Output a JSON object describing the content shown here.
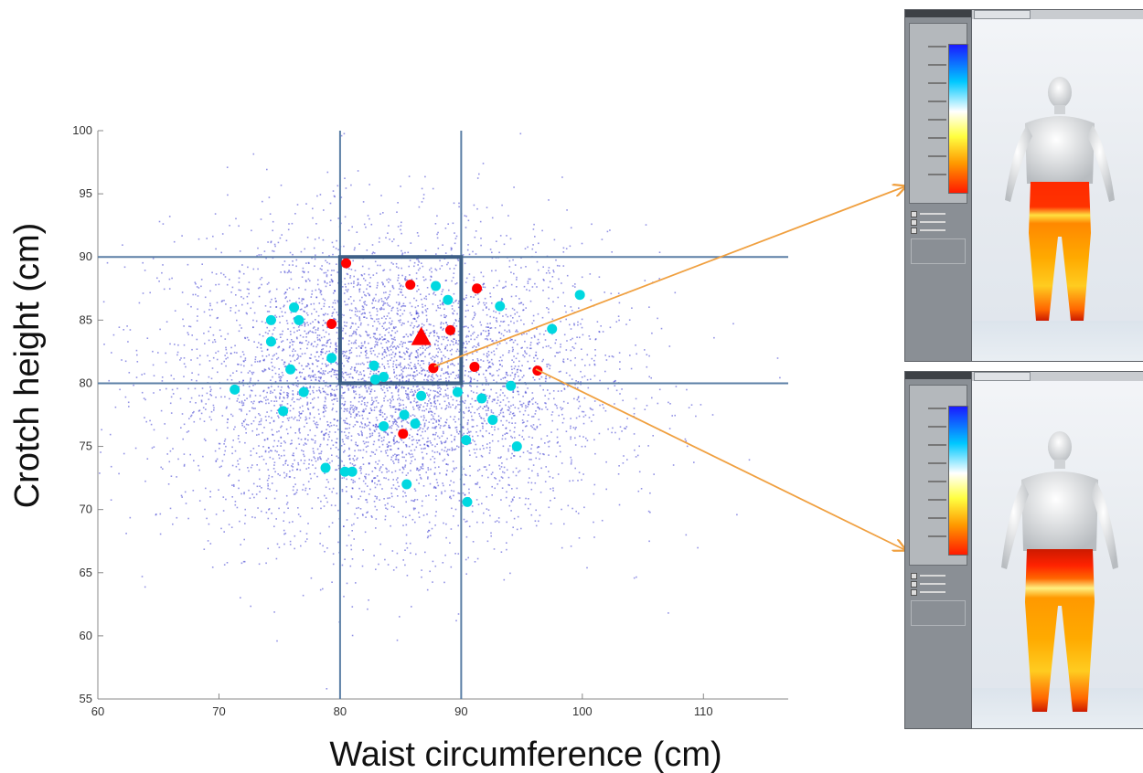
{
  "chart_data": {
    "type": "scatter",
    "xlabel": "Waist circumference (cm)",
    "ylabel": "Crotch height (cm)",
    "xlim": [
      60,
      117
    ],
    "ylim": [
      55,
      100
    ],
    "x_ticks": [
      60,
      70,
      80,
      90,
      100,
      110
    ],
    "y_ticks": [
      55,
      60,
      65,
      70,
      75,
      80,
      85,
      90,
      95,
      100
    ],
    "reference_lines": {
      "x": [
        80,
        90
      ],
      "y": [
        80,
        90
      ]
    },
    "highlight_box": {
      "x": [
        80,
        90
      ],
      "y": [
        80,
        90
      ]
    },
    "population_cloud": {
      "color": "#3a3ad0",
      "center": [
        84,
        80
      ],
      "spread": [
        9,
        6
      ]
    },
    "series": [
      {
        "color": "#ff0000",
        "points": [
          [
            80.5,
            89.5
          ],
          [
            85.8,
            87.8
          ],
          [
            91.3,
            87.5
          ],
          [
            79.3,
            84.7
          ],
          [
            89.1,
            84.2
          ],
          [
            87.7,
            81.2
          ],
          [
            91.1,
            81.3
          ],
          [
            96.3,
            81.0
          ],
          [
            85.2,
            76.0
          ]
        ]
      },
      {
        "color": "#ff0000",
        "marker": "triangle",
        "points": [
          [
            86.7,
            83.6
          ]
        ]
      },
      {
        "color": "#00d8e0",
        "points": [
          [
            76.2,
            86.0
          ],
          [
            76.6,
            85.0
          ],
          [
            74.3,
            85.0
          ],
          [
            74.3,
            83.3
          ],
          [
            79.3,
            82.0
          ],
          [
            75.9,
            81.1
          ],
          [
            82.8,
            81.4
          ],
          [
            83.6,
            80.5
          ],
          [
            82.9,
            80.3
          ],
          [
            71.3,
            79.5
          ],
          [
            77.0,
            79.3
          ],
          [
            86.7,
            79.0
          ],
          [
            89.7,
            79.3
          ],
          [
            91.7,
            78.8
          ],
          [
            94.1,
            79.8
          ],
          [
            75.3,
            77.8
          ],
          [
            85.3,
            77.5
          ],
          [
            86.2,
            76.8
          ],
          [
            83.6,
            76.6
          ],
          [
            92.6,
            77.1
          ],
          [
            90.4,
            75.5
          ],
          [
            94.6,
            75.0
          ],
          [
            78.8,
            73.3
          ],
          [
            80.4,
            73.0
          ],
          [
            81.0,
            73.0
          ],
          [
            85.5,
            72.0
          ],
          [
            90.5,
            70.6
          ],
          [
            87.9,
            87.7
          ],
          [
            88.9,
            86.6
          ],
          [
            93.2,
            86.1
          ],
          [
            99.8,
            87.0
          ],
          [
            97.5,
            84.3
          ]
        ]
      }
    ]
  },
  "callout": {
    "arrow_color": "#f0a040"
  },
  "panels": [
    {
      "colorbar_labels": 8
    },
    {
      "colorbar_labels": 8
    }
  ]
}
